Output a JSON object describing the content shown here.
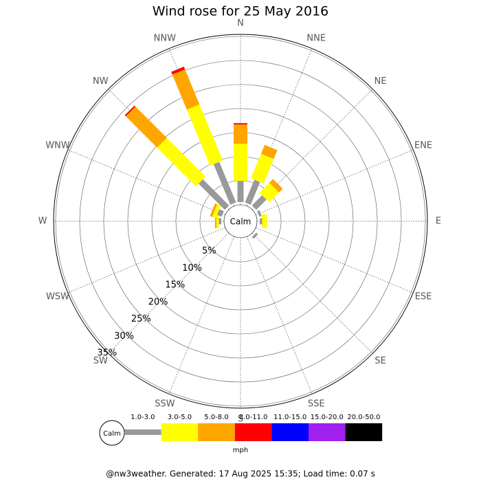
{
  "chart_data": {
    "type": "windrose",
    "title": "Wind rose for 25 May 2016",
    "center_label": "Calm",
    "categories": [
      "N",
      "NNE",
      "NE",
      "ENE",
      "E",
      "ESE",
      "SE",
      "SSE",
      "S",
      "SSW",
      "SW",
      "WSW",
      "W",
      "WNW",
      "NW",
      "NNW"
    ],
    "series": [
      {
        "name": "1.0-3.0",
        "color": "#999999",
        "values": [
          4.4,
          5.1,
          3.0,
          0.5,
          0.5,
          0,
          0.5,
          0,
          0,
          0,
          0,
          0,
          0.5,
          1.0,
          7.7,
          9.1
        ]
      },
      {
        "name": "3.0-5.0",
        "color": "#ffff00",
        "values": [
          7.7,
          5.5,
          2.9,
          0,
          1.0,
          0,
          0,
          0,
          0,
          0,
          0,
          0,
          0.5,
          0.8,
          11.4,
          12.6
        ]
      },
      {
        "name": "5.0-8.0",
        "color": "#ffa500",
        "values": [
          4.0,
          2.0,
          1.1,
          0,
          0,
          0,
          0,
          0,
          0,
          0,
          0,
          0,
          0.3,
          0.5,
          9.2,
          7.9
        ]
      },
      {
        "name": "8.0-11.0",
        "color": "#ff0000",
        "values": [
          0.3,
          0,
          0,
          0,
          0,
          0,
          0,
          0,
          0,
          0,
          0,
          0,
          0,
          0,
          0.3,
          0.6
        ]
      },
      {
        "name": "11.0-15.0",
        "color": "#0000ff",
        "values": [
          0,
          0,
          0,
          0,
          0,
          0,
          0,
          0,
          0,
          0,
          0,
          0,
          0,
          0,
          0,
          0
        ]
      },
      {
        "name": "15.0-20.0",
        "color": "#a020f0",
        "values": [
          0,
          0,
          0,
          0,
          0,
          0,
          0,
          0,
          0,
          0,
          0,
          0,
          0,
          0,
          0,
          0
        ]
      },
      {
        "name": "20.0-50.0",
        "color": "#000000",
        "values": [
          0,
          0,
          0,
          0,
          0,
          0,
          0,
          0,
          0,
          0,
          0,
          0,
          0,
          0,
          0,
          0
        ]
      }
    ],
    "rlim": [
      0,
      35
    ],
    "rticks": [
      {
        "value": 5,
        "label": "5%"
      },
      {
        "value": 10,
        "label": "10%"
      },
      {
        "value": 15,
        "label": "15%"
      },
      {
        "value": 20,
        "label": "20%"
      },
      {
        "value": 25,
        "label": "25%"
      },
      {
        "value": 30,
        "label": "30%"
      },
      {
        "value": 35,
        "label": "35%"
      }
    ],
    "legend_label": "mph",
    "footer": "@nw3weather. Generated: 17 Aug 2025 15:35; Load time: 0.07 s"
  }
}
